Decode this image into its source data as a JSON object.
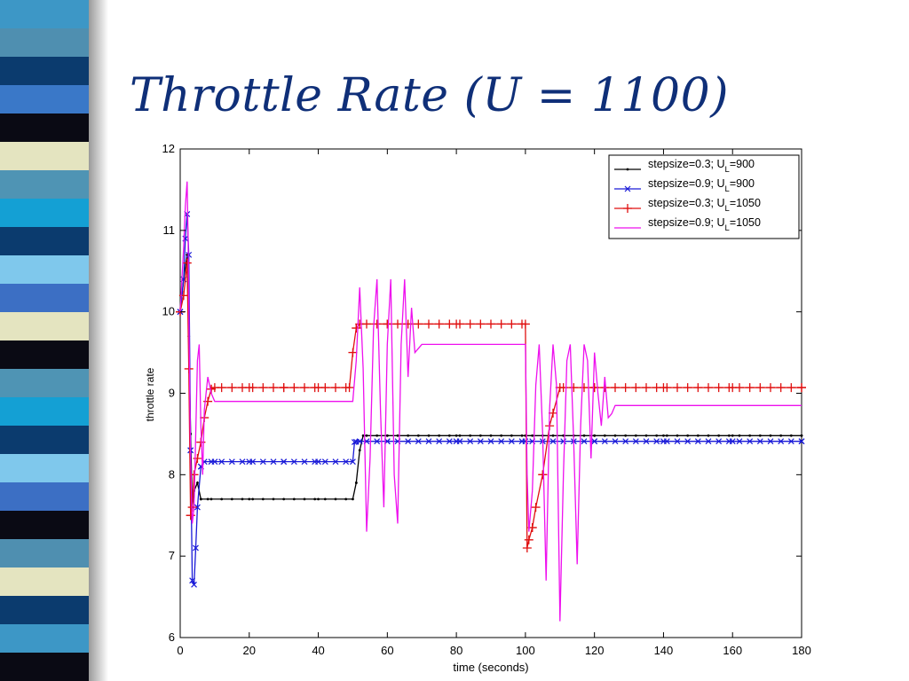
{
  "slide": {
    "title": "Throttle Rate (U = 1100)",
    "stripe_colors": [
      "#3d97c6",
      "#4f8fb0",
      "#0b3b6e",
      "#3a78c8",
      "#0a0a14",
      "#e4e4c0",
      "#4f94b4",
      "#14a0d4",
      "#0b3b6e",
      "#7fc8ec",
      "#3c6fc4",
      "#e4e4c0",
      "#0a0a14",
      "#4f94b4",
      "#14a0d4",
      "#0b3b6e",
      "#7fc8ec",
      "#3c6fc4",
      "#0a0a14",
      "#4f8fb0",
      "#e4e4c0",
      "#0b3b6e",
      "#3d97c6",
      "#0a0a14"
    ]
  },
  "chart_data": {
    "type": "line",
    "xlabel": "time (seconds)",
    "ylabel": "throttle rate",
    "xlim": [
      0,
      180
    ],
    "ylim": [
      6,
      12
    ],
    "xticks": [
      0,
      20,
      40,
      60,
      80,
      100,
      120,
      140,
      160,
      180
    ],
    "yticks": [
      6,
      7,
      8,
      9,
      10,
      11,
      12
    ],
    "grid": false,
    "legend_position": "top-right",
    "series": [
      {
        "name": "stepsize=0.3; U_L=900",
        "legend": {
          "main": "stepsize=0.3; U",
          "sub": "L",
          "tail": "=900"
        },
        "color": "#000000",
        "marker": "dot",
        "x": [
          0,
          1,
          2,
          2.5,
          3,
          3.5,
          4,
          5,
          6,
          8,
          20,
          40,
          50,
          51,
          52,
          53,
          60,
          80,
          100,
          120,
          140,
          160,
          180
        ],
        "y": [
          10,
          10.4,
          10.7,
          9.7,
          8.5,
          7.6,
          7.8,
          7.9,
          7.7,
          7.7,
          7.7,
          7.7,
          7.7,
          7.9,
          8.3,
          8.48,
          8.48,
          8.48,
          8.48,
          8.48,
          8.48,
          8.48,
          8.48
        ]
      },
      {
        "name": "stepsize=0.9; U_L=900",
        "legend": {
          "main": "stepsize=0.9; U",
          "sub": "L",
          "tail": "=900"
        },
        "color": "#1a1ad8",
        "marker": "x",
        "x": [
          0,
          1,
          1.5,
          2,
          2.5,
          3,
          3.5,
          4,
          4.5,
          5,
          6,
          7,
          10,
          20,
          30,
          40,
          50,
          50.5,
          52,
          60,
          80,
          100,
          120,
          140,
          160,
          180
        ],
        "y": [
          10,
          10.4,
          10.9,
          11.2,
          10.7,
          8.3,
          6.7,
          6.65,
          7.1,
          7.6,
          8.1,
          8.16,
          8.16,
          8.16,
          8.16,
          8.16,
          8.16,
          8.4,
          8.41,
          8.41,
          8.41,
          8.41,
          8.41,
          8.41,
          8.41,
          8.41
        ]
      },
      {
        "name": "stepsize=0.3; U_L=1050",
        "legend": {
          "main": "stepsize=0.3; U",
          "sub": "L",
          "tail": "=1050"
        },
        "color": "#e01010",
        "marker": "plus",
        "x": [
          0,
          1,
          2,
          2.5,
          3,
          3.5,
          4,
          5,
          6,
          7,
          8,
          9,
          10,
          20,
          30,
          40,
          49,
          50,
          51,
          52,
          60,
          80,
          100,
          100.5,
          101,
          102,
          103,
          105,
          107,
          110,
          120,
          140,
          160,
          180
        ],
        "y": [
          10,
          10.2,
          10.6,
          9.3,
          7.5,
          7.6,
          8.0,
          8.2,
          8.4,
          8.7,
          8.9,
          9.05,
          9.07,
          9.07,
          9.07,
          9.07,
          9.07,
          9.5,
          9.8,
          9.85,
          9.85,
          9.85,
          9.85,
          7.1,
          7.2,
          7.35,
          7.6,
          8.0,
          8.6,
          9.07,
          9.07,
          9.07,
          9.07,
          9.07
        ]
      },
      {
        "name": "stepsize=0.9; U_L=1050",
        "legend": {
          "main": "stepsize=0.9; U",
          "sub": "L",
          "tail": "=1050"
        },
        "color": "#ee10ee",
        "marker": "none",
        "x": [
          0,
          1,
          1.5,
          2,
          2.3,
          2.6,
          3,
          3.5,
          4,
          4.5,
          5,
          5.5,
          6,
          6.5,
          7,
          8,
          9,
          10,
          20,
          30,
          40,
          50,
          51,
          52,
          53,
          54,
          55,
          56,
          57,
          58,
          59,
          60,
          61,
          62,
          63,
          64,
          65,
          66,
          67,
          68,
          70,
          80,
          100,
          100.5,
          101,
          102,
          103,
          104,
          105,
          106,
          107,
          108,
          109,
          110,
          111,
          112,
          113,
          114,
          115,
          116,
          117,
          118,
          119,
          120,
          121,
          122,
          123,
          124,
          125,
          126,
          140,
          160,
          180
        ],
        "y": [
          10,
          10.8,
          11.3,
          11.6,
          10.9,
          9.6,
          8.2,
          7.4,
          7.6,
          8.5,
          9.4,
          9.6,
          8.6,
          8.0,
          8.8,
          9.2,
          9.0,
          8.9,
          8.9,
          8.9,
          8.9,
          8.9,
          9.4,
          10.3,
          9.3,
          7.3,
          8.2,
          9.8,
          10.4,
          8.8,
          7.6,
          9.6,
          10.4,
          8.0,
          7.4,
          9.6,
          10.4,
          9.2,
          10.05,
          9.5,
          9.6,
          9.6,
          9.6,
          8.0,
          7.3,
          7.8,
          9.1,
          9.6,
          8.5,
          6.7,
          8.8,
          9.6,
          9.1,
          6.2,
          8.0,
          9.4,
          9.6,
          8.4,
          6.9,
          8.6,
          9.6,
          9.4,
          8.2,
          9.5,
          9.0,
          8.6,
          9.2,
          8.7,
          8.75,
          8.85,
          8.85,
          8.85,
          8.85
        ]
      }
    ]
  }
}
